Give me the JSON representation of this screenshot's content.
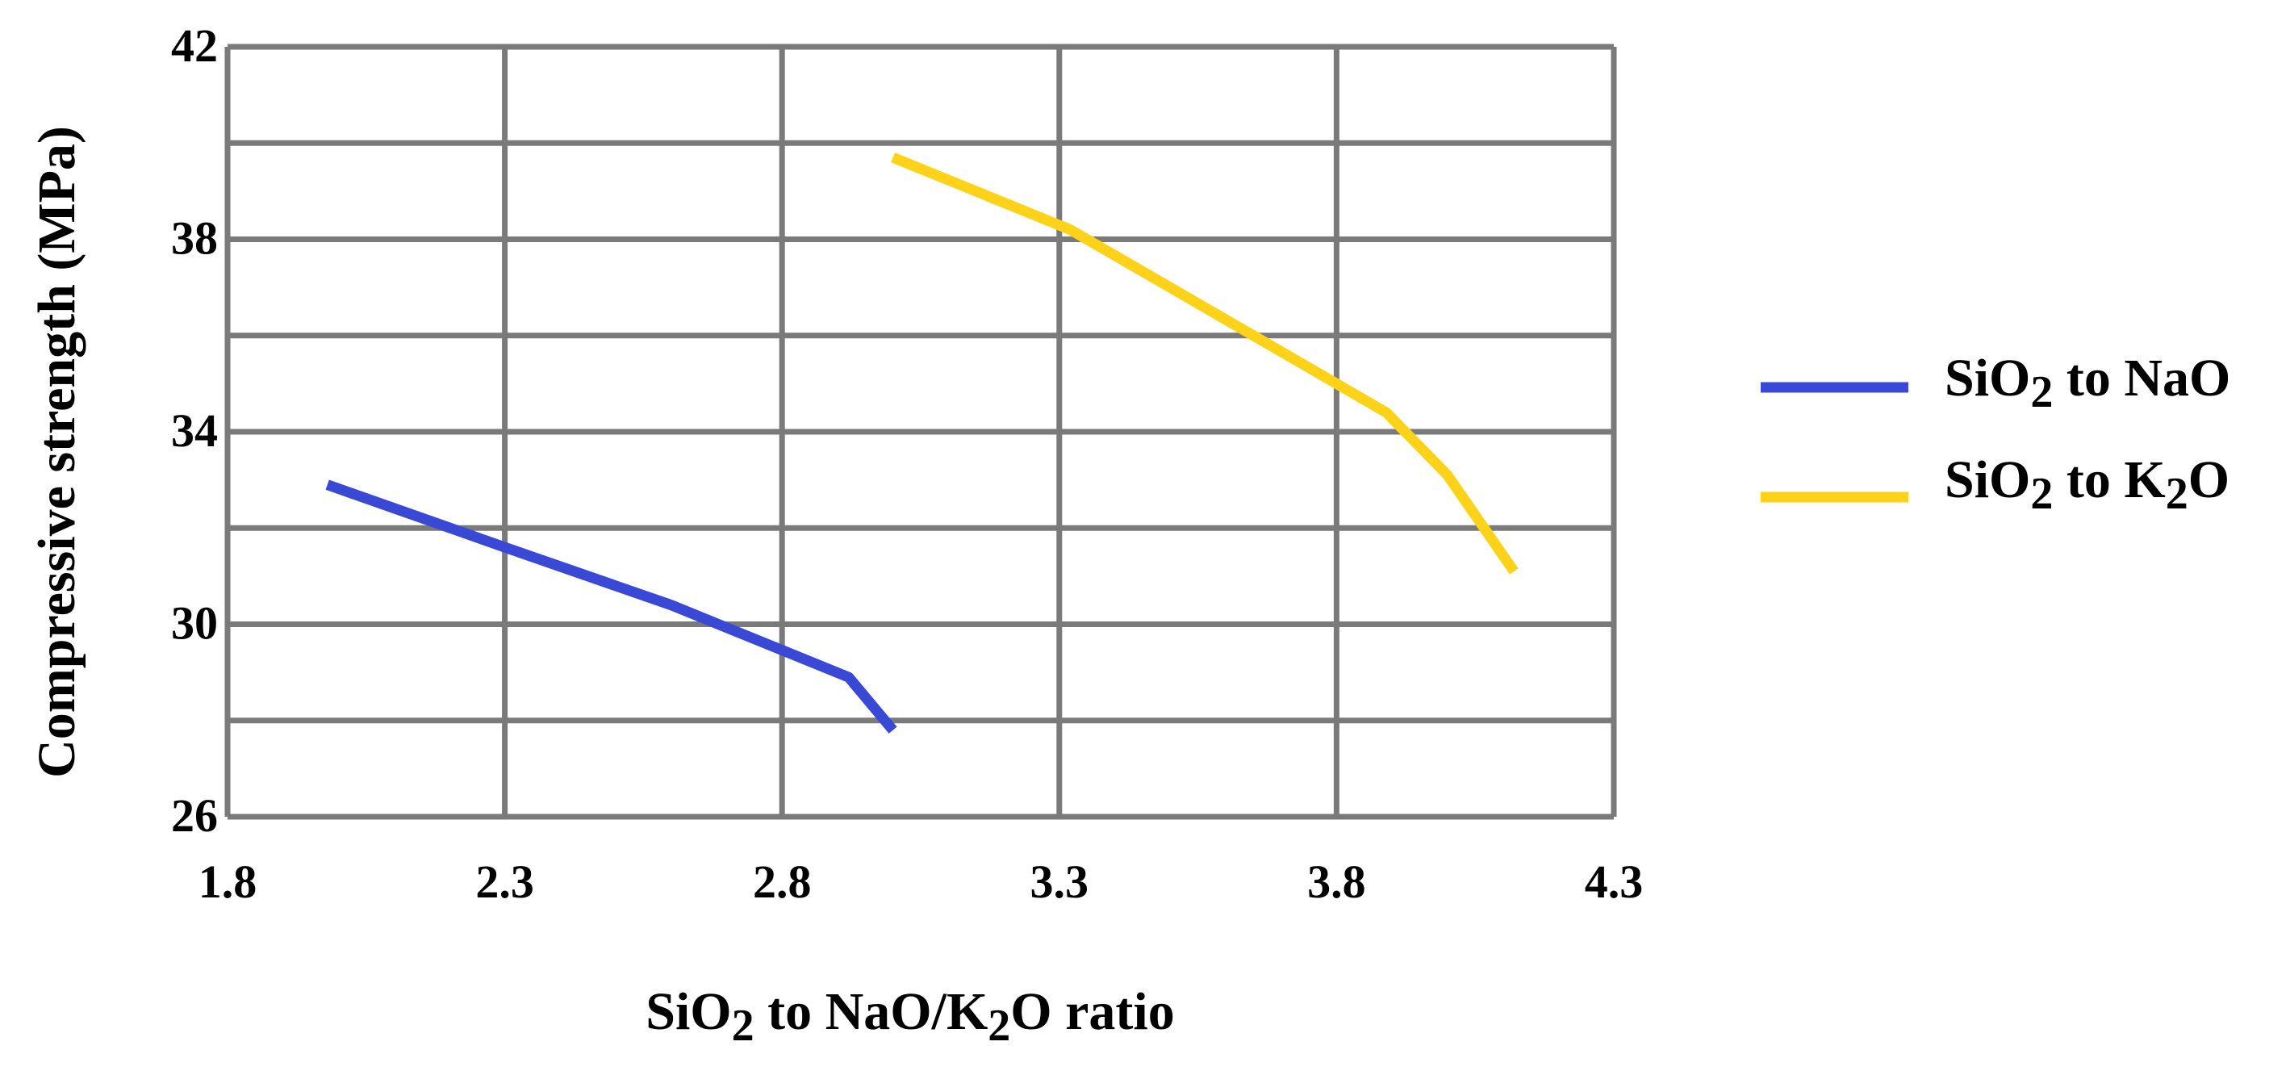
{
  "chart_data": {
    "type": "line",
    "title": "",
    "xlabel": {
      "prefix": "SiO",
      "sub1": "2",
      "middle": " to NaO/K",
      "sub2": "2",
      "suffix": "O ratio"
    },
    "ylabel": "Compressive strength (MPa)",
    "xlim": [
      1.8,
      4.3
    ],
    "ylim": [
      26,
      42
    ],
    "x_ticks": [
      "1.8",
      "2.3",
      "2.8",
      "3.3",
      "3.8",
      "4.3"
    ],
    "y_ticks": [
      "26",
      "30",
      "34",
      "38",
      "42"
    ],
    "grid": true,
    "legend_position": "right",
    "series": [
      {
        "name": "SiO2 to NaO",
        "legend": {
          "prefix": "SiO",
          "sub": "2",
          "suffix": " to NaO"
        },
        "color": "#3a48d6",
        "x": [
          1.98,
          2.3,
          2.6,
          2.92,
          3.0
        ],
        "y": [
          32.9,
          31.6,
          30.4,
          28.9,
          27.8
        ]
      },
      {
        "name": "SiO2 to K2O",
        "legend": {
          "prefix": "SiO",
          "sub": "2",
          "middle": " to K",
          "sub2": "2",
          "suffix": "O"
        },
        "color": "#ffd21a",
        "x": [
          3.0,
          3.32,
          3.65,
          3.89,
          4.0,
          4.12
        ],
        "y": [
          39.7,
          38.2,
          36.0,
          34.4,
          33.1,
          31.1
        ]
      }
    ]
  }
}
